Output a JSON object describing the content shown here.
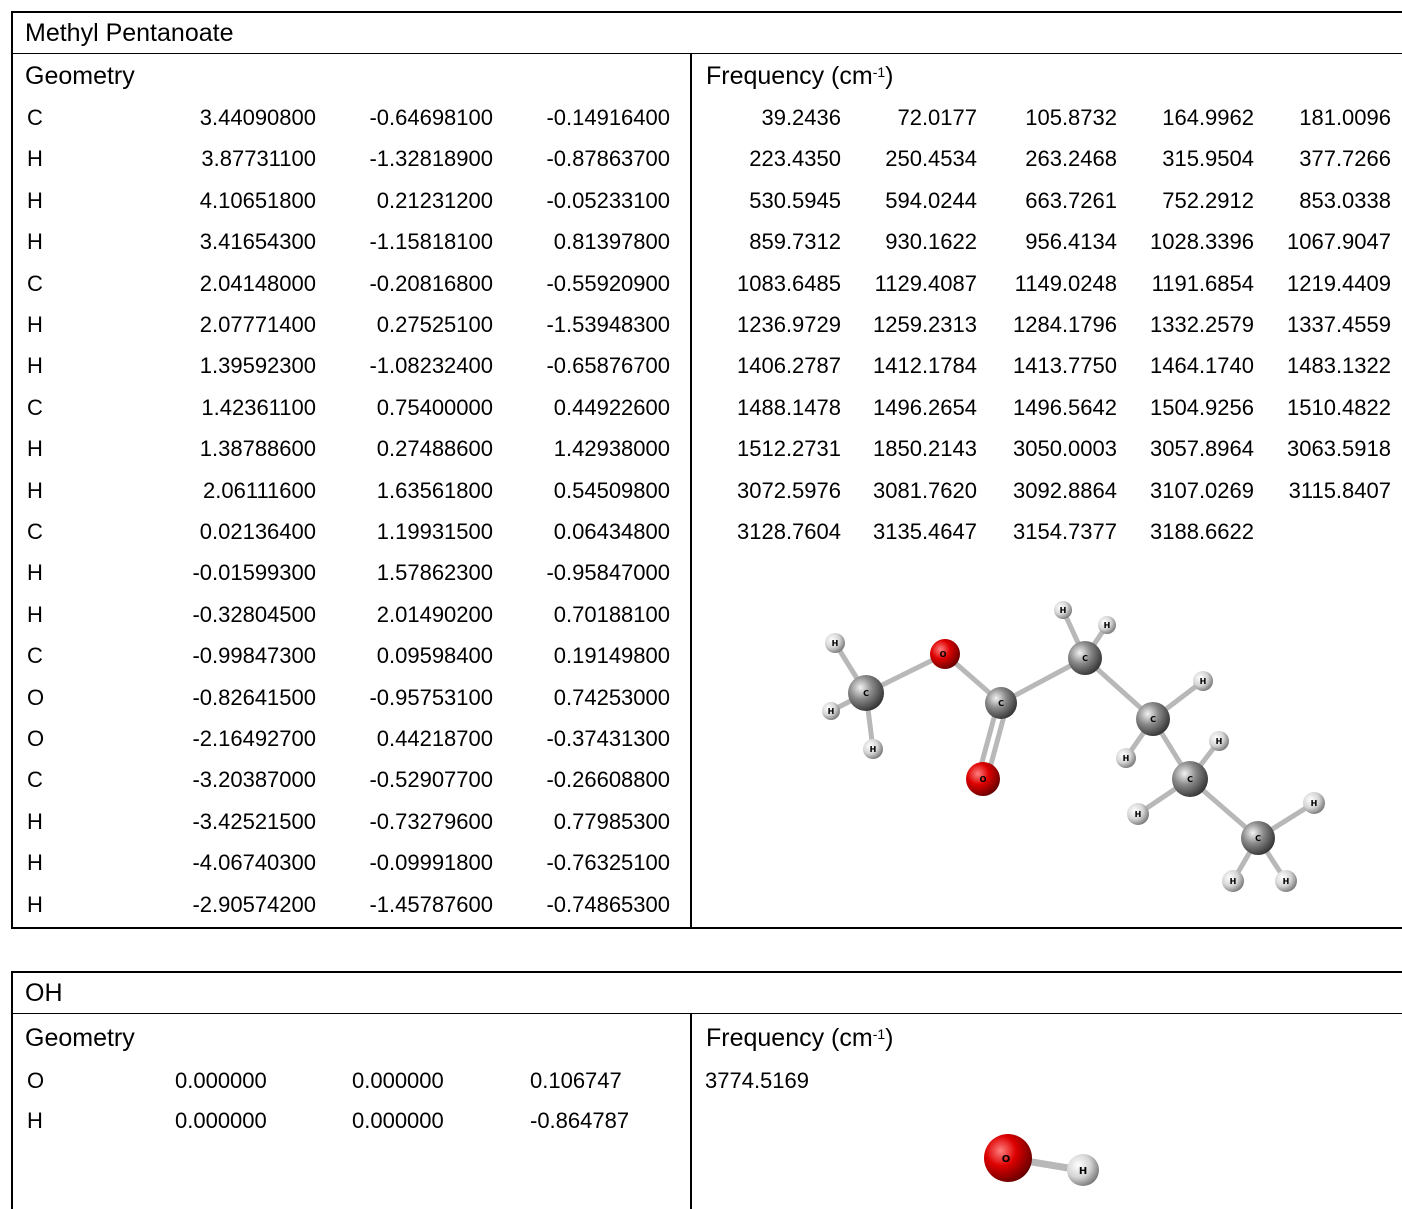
{
  "molecule1": {
    "title": "Methyl Pentanoate",
    "geometry_header": "Geometry",
    "frequency_header": "Frequency (cm",
    "frequency_unit_sup": "-1",
    "frequency_close": ")",
    "geometry": [
      [
        "C",
        "3.44090800",
        "-0.64698100",
        "-0.14916400"
      ],
      [
        "H",
        "3.87731100",
        "-1.32818900",
        "-0.87863700"
      ],
      [
        "H",
        "4.10651800",
        "0.21231200",
        "-0.05233100"
      ],
      [
        "H",
        "3.41654300",
        "-1.15818100",
        "0.81397800"
      ],
      [
        "C",
        "2.04148000",
        "-0.20816800",
        "-0.55920900"
      ],
      [
        "H",
        "2.07771400",
        "0.27525100",
        "-1.53948300"
      ],
      [
        "H",
        "1.39592300",
        "-1.08232400",
        "-0.65876700"
      ],
      [
        "C",
        "1.42361100",
        "0.75400000",
        "0.44922600"
      ],
      [
        "H",
        "1.38788600",
        "0.27488600",
        "1.42938000"
      ],
      [
        "H",
        "2.06111600",
        "1.63561800",
        "0.54509800"
      ],
      [
        "C",
        "0.02136400",
        "1.19931500",
        "0.06434800"
      ],
      [
        "H",
        "-0.01599300",
        "1.57862300",
        "-0.95847000"
      ],
      [
        "H",
        "-0.32804500",
        "2.01490200",
        "0.70188100"
      ],
      [
        "C",
        "-0.99847300",
        "0.09598400",
        "0.19149800"
      ],
      [
        "O",
        "-0.82641500",
        "-0.95753100",
        "0.74253000"
      ],
      [
        "O",
        "-2.16492700",
        "0.44218700",
        "-0.37431300"
      ],
      [
        "C",
        "-3.20387000",
        "-0.52907700",
        "-0.26608800"
      ],
      [
        "H",
        "-3.42521500",
        "-0.73279600",
        "0.77985300"
      ],
      [
        "H",
        "-4.06740300",
        "-0.09991800",
        "-0.76325100"
      ],
      [
        "H",
        "-2.90574200",
        "-1.45787600",
        "-0.74865300"
      ]
    ],
    "frequencies": [
      [
        "39.2436",
        "72.0177",
        "105.8732",
        "164.9962",
        "181.0096"
      ],
      [
        "223.4350",
        "250.4534",
        "263.2468",
        "315.9504",
        "377.7266"
      ],
      [
        "530.5945",
        "594.0244",
        "663.7261",
        "752.2912",
        "853.0338"
      ],
      [
        "859.7312",
        "930.1622",
        "956.4134",
        "1028.3396",
        "1067.9047"
      ],
      [
        "1083.6485",
        "1129.4087",
        "1149.0248",
        "1191.6854",
        "1219.4409"
      ],
      [
        "1236.9729",
        "1259.2313",
        "1284.1796",
        "1332.2579",
        "1337.4559"
      ],
      [
        "1406.2787",
        "1412.1784",
        "1413.7750",
        "1464.1740",
        "1483.1322"
      ],
      [
        "1488.1478",
        "1496.2654",
        "1496.5642",
        "1504.9256",
        "1510.4822"
      ],
      [
        "1512.2731",
        "1850.2143",
        "3050.0003",
        "3057.8964",
        "3063.5918"
      ],
      [
        "3072.5976",
        "3081.7620",
        "3092.8864",
        "3107.0269",
        "3115.8407"
      ],
      [
        "3128.7604",
        "3135.4647",
        "3154.7377",
        "3188.6622"
      ]
    ],
    "atom_labels": {
      "carbon": "C",
      "hydrogen": "H",
      "oxygen": "O"
    }
  },
  "molecule2": {
    "title": "OH",
    "geometry_header": "Geometry",
    "frequency_header": "Frequency (cm",
    "frequency_unit_sup": "-1",
    "frequency_close": ")",
    "geometry": [
      [
        "O",
        "0.000000",
        "0.000000",
        "0.106747"
      ],
      [
        "H",
        "0.000000",
        "0.000000",
        "-0.864787"
      ]
    ],
    "frequencies": [
      [
        "3774.5169"
      ]
    ],
    "atom_labels": {
      "hydrogen": "H",
      "oxygen": "O"
    }
  },
  "colors": {
    "oxygen": "#cc0000",
    "carbon": "#777777",
    "hydrogen": "#dddddd"
  }
}
